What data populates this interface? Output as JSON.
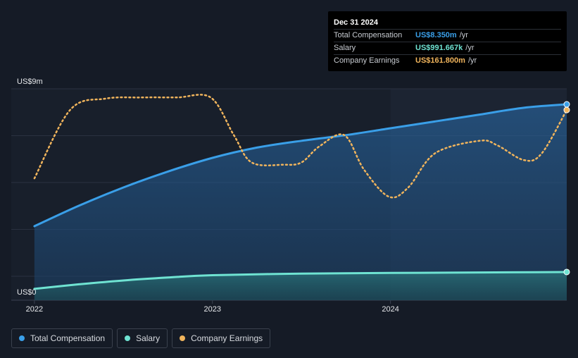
{
  "tooltip": {
    "date": "Dec 31 2024",
    "rows": [
      {
        "label": "Total Compensation",
        "value": "US$8.350m",
        "unit": "/yr",
        "color": "#3a9fe8"
      },
      {
        "label": "Salary",
        "value": "US$991.667k",
        "unit": "/yr",
        "color": "#6fe3d2"
      },
      {
        "label": "Company Earnings",
        "value": "US$161.800m",
        "unit": "/yr",
        "color": "#f0b45c"
      }
    ]
  },
  "legend": [
    {
      "label": "Total Compensation",
      "color": "#3a9fe8"
    },
    {
      "label": "Salary",
      "color": "#6fe3d2"
    },
    {
      "label": "Company Earnings",
      "color": "#f0b45c"
    }
  ],
  "chart_data": {
    "type": "line",
    "y_axis": {
      "top_label": "US$9m",
      "bottom_label": "US$0",
      "range": [
        0,
        9
      ]
    },
    "x_ticks": [
      {
        "label": "2022",
        "x": 2022.0
      },
      {
        "label": "2023",
        "x": 2023.0
      },
      {
        "label": "2024",
        "x": 2024.0
      }
    ],
    "x_range": [
      2021.87,
      2024.99
    ],
    "grid": true,
    "highlight_start": 2024.0,
    "series": [
      {
        "name": "Total Compensation",
        "color": "#3a9fe8",
        "area": true,
        "points": [
          [
            2022.0,
            3.0
          ],
          [
            2022.25,
            3.9
          ],
          [
            2022.5,
            4.7
          ],
          [
            2022.75,
            5.4
          ],
          [
            2023.0,
            6.0
          ],
          [
            2023.25,
            6.45
          ],
          [
            2023.5,
            6.75
          ],
          [
            2023.75,
            7.0
          ],
          [
            2024.0,
            7.3
          ],
          [
            2024.25,
            7.6
          ],
          [
            2024.5,
            7.9
          ],
          [
            2024.75,
            8.2
          ],
          [
            2024.99,
            8.35
          ]
        ]
      },
      {
        "name": "Salary",
        "color": "#6fe3d2",
        "area": true,
        "points": [
          [
            2022.0,
            0.25
          ],
          [
            2022.25,
            0.45
          ],
          [
            2022.5,
            0.62
          ],
          [
            2022.75,
            0.75
          ],
          [
            2023.0,
            0.85
          ],
          [
            2023.5,
            0.92
          ],
          [
            2024.0,
            0.95
          ],
          [
            2024.5,
            0.97
          ],
          [
            2024.99,
            0.99
          ]
        ]
      },
      {
        "name": "Company Earnings",
        "color": "#f0b45c",
        "dashed": true,
        "note": "plotted on an independent (unlabelled) scale",
        "points": [
          [
            2022.0,
            5.1
          ],
          [
            2022.2,
            8.1
          ],
          [
            2022.4,
            8.6
          ],
          [
            2022.6,
            8.65
          ],
          [
            2022.8,
            8.65
          ],
          [
            2022.99,
            8.65
          ],
          [
            2023.12,
            7.0
          ],
          [
            2023.22,
            5.8
          ],
          [
            2023.4,
            5.7
          ],
          [
            2023.5,
            5.8
          ],
          [
            2023.6,
            6.5
          ],
          [
            2023.74,
            7.0
          ],
          [
            2023.85,
            5.5
          ],
          [
            2023.99,
            4.3
          ],
          [
            2024.1,
            4.7
          ],
          [
            2024.25,
            6.2
          ],
          [
            2024.5,
            6.75
          ],
          [
            2024.6,
            6.55
          ],
          [
            2024.75,
            5.9
          ],
          [
            2024.85,
            6.2
          ],
          [
            2024.99,
            8.1
          ]
        ]
      }
    ]
  }
}
